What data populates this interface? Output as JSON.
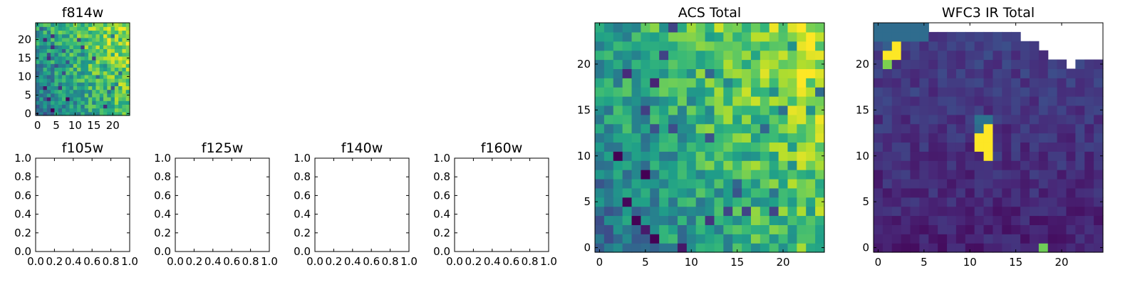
{
  "chart_data": [
    {
      "type": "heatmap",
      "title": "f814w",
      "xlim": [
        -0.5,
        24.5
      ],
      "ylim": [
        -0.5,
        24.5
      ],
      "xticks": [
        0,
        5,
        10,
        15,
        20
      ],
      "yticks": [
        0,
        5,
        10,
        15,
        20
      ],
      "xtick_labels": [
        "0",
        "5",
        "10",
        "15",
        "20"
      ],
      "ytick_labels": [
        "0",
        "5",
        "10",
        "15",
        "20"
      ],
      "colormap": "viridis",
      "grid": false,
      "data_description_values": "25x25 pixel image; brighter (yellow) toward the upper right, noisy blue/green elsewhere"
    },
    {
      "type": "heatmap",
      "title": "f105w",
      "xlim": [
        0.0,
        1.0
      ],
      "ylim": [
        0.0,
        1.0
      ],
      "xtick_labels": [
        "0.0",
        "0.2",
        "0.4",
        "0.6",
        "0.8",
        "1.0"
      ],
      "ytick_labels": [
        "0.0",
        "0.2",
        "0.4",
        "0.6",
        "0.8",
        "1.0"
      ],
      "grid": false
    },
    {
      "type": "heatmap",
      "title": "f125w",
      "xlim": [
        0.0,
        1.0
      ],
      "ylim": [
        0.0,
        1.0
      ],
      "xtick_labels": [
        "0.0",
        "0.2",
        "0.4",
        "0.6",
        "0.8",
        "1.0"
      ],
      "ytick_labels": [
        "0.0",
        "0.2",
        "0.4",
        "0.6",
        "0.8",
        "1.0"
      ],
      "grid": false
    },
    {
      "type": "heatmap",
      "title": "f140w",
      "xlim": [
        0.0,
        1.0
      ],
      "ylim": [
        0.0,
        1.0
      ],
      "xtick_labels": [
        "0.0",
        "0.2",
        "0.4",
        "0.6",
        "0.8",
        "1.0"
      ],
      "ytick_labels": [
        "0.0",
        "0.2",
        "0.4",
        "0.6",
        "0.8",
        "1.0"
      ],
      "grid": false
    },
    {
      "type": "heatmap",
      "title": "f160w",
      "xlim": [
        0.0,
        1.0
      ],
      "ylim": [
        0.0,
        1.0
      ],
      "xtick_labels": [
        "0.0",
        "0.2",
        "0.4",
        "0.6",
        "0.8",
        "1.0"
      ],
      "ytick_labels": [
        "0.0",
        "0.2",
        "0.4",
        "0.6",
        "0.8",
        "1.0"
      ],
      "grid": false
    },
    {
      "type": "heatmap",
      "title": "ACS Total",
      "xlim": [
        -0.5,
        24.5
      ],
      "ylim": [
        -0.5,
        24.5
      ],
      "xticks": [
        0,
        5,
        10,
        15,
        20
      ],
      "yticks": [
        0,
        5,
        10,
        15,
        20
      ],
      "xtick_labels": [
        "0",
        "5",
        "10",
        "15",
        "20"
      ],
      "ytick_labels": [
        "0",
        "5",
        "10",
        "15",
        "20"
      ],
      "colormap": "viridis",
      "grid": false
    },
    {
      "type": "heatmap",
      "title": "WFC3 IR Total",
      "xlim": [
        -0.5,
        24.5
      ],
      "ylim": [
        -0.5,
        24.5
      ],
      "xticks": [
        0,
        5,
        10,
        15,
        20
      ],
      "yticks": [
        0,
        5,
        10,
        15,
        20
      ],
      "xtick_labels": [
        "0",
        "5",
        "10",
        "15",
        "20"
      ],
      "ytick_labels": [
        "0",
        "5",
        "10",
        "15",
        "20"
      ],
      "colormap": "viridis",
      "grid": false
    }
  ]
}
